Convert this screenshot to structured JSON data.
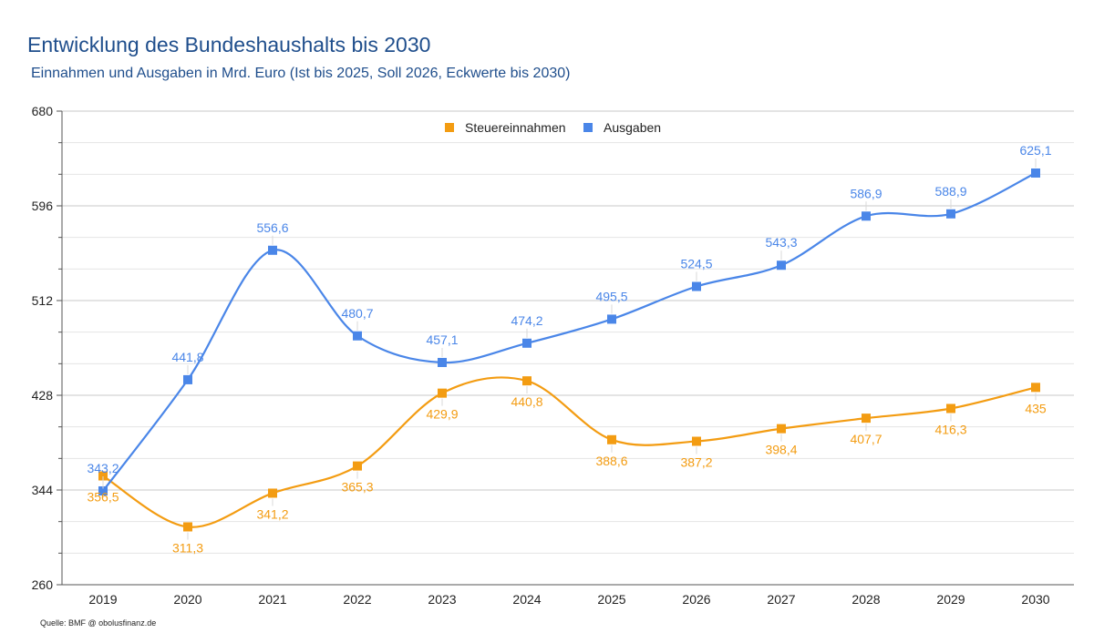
{
  "page": {
    "title": "Entwicklung des Bundeshaushalts bis 2030",
    "subtitle": "Einnahmen und Ausgaben in Mrd. Euro (Ist bis 2025, Soll 2026, Eckwerte bis 2030)",
    "source": "Quelle: BMF @ obolusfinanz.de"
  },
  "chart_data": {
    "type": "line",
    "categories": [
      "2019",
      "2020",
      "2021",
      "2022",
      "2023",
      "2024",
      "2025",
      "2026",
      "2027",
      "2028",
      "2029",
      "2030"
    ],
    "series": [
      {
        "name": "Steuereinnahmen",
        "color": "#f39c12",
        "values": [
          356.5,
          311.3,
          341.2,
          365.3,
          429.9,
          440.8,
          388.6,
          387.2,
          398.4,
          407.7,
          416.3,
          435
        ],
        "labels": [
          "356,5",
          "311,3",
          "341,2",
          "365,3",
          "429,9",
          "440,8",
          "388,6",
          "387,2",
          "398,4",
          "407,7",
          "416,3",
          "435"
        ],
        "label_position": "below"
      },
      {
        "name": "Ausgaben",
        "color": "#4a86e8",
        "values": [
          343.2,
          441.8,
          556.6,
          480.7,
          457.1,
          474.2,
          495.5,
          524.5,
          543.3,
          586.9,
          588.9,
          625.1
        ],
        "labels": [
          "343,2",
          "441,8",
          "556,6",
          "480,7",
          "457,1",
          "474,2",
          "495,5",
          "524,5",
          "543,3",
          "586,9",
          "588,9",
          "625,1"
        ],
        "label_position": "above"
      }
    ],
    "ylim": [
      260,
      680
    ],
    "yticks": [
      "260",
      "344",
      "428",
      "512",
      "596",
      "680"
    ],
    "y_minor_step": 28,
    "grid": true,
    "legend": "top-center"
  }
}
